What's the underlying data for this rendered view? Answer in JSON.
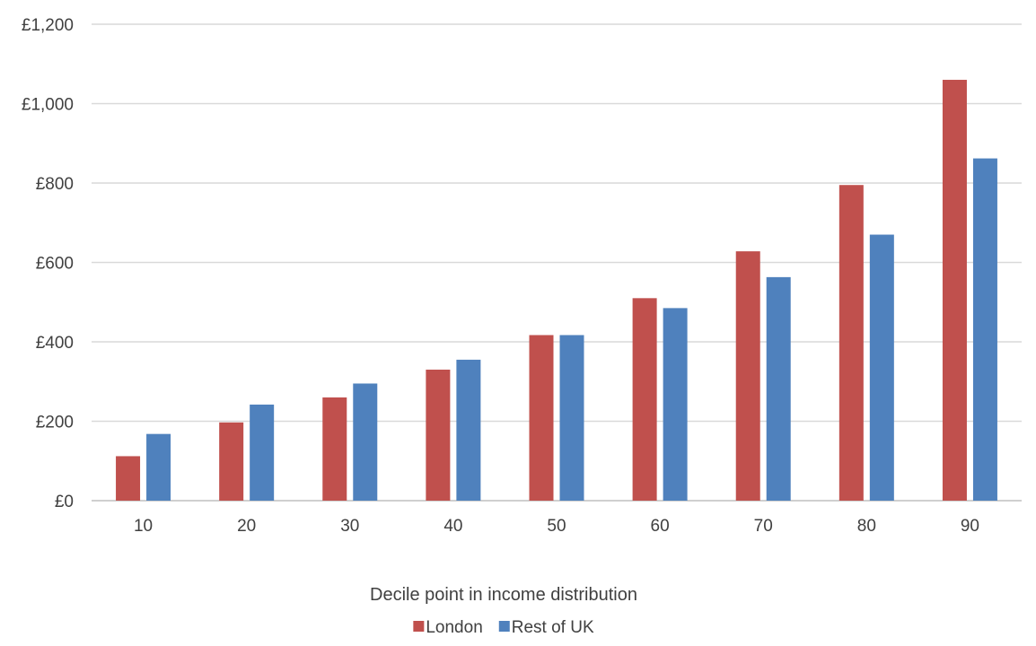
{
  "chart_data": {
    "type": "bar",
    "categories": [
      "10",
      "20",
      "30",
      "40",
      "50",
      "60",
      "70",
      "80",
      "90"
    ],
    "series": [
      {
        "name": "London",
        "color": "#c0504d",
        "values": [
          112,
          197,
          260,
          330,
          417,
          510,
          628,
          795,
          1060
        ]
      },
      {
        "name": "Rest of UK",
        "color": "#4f81bd",
        "values": [
          168,
          242,
          295,
          355,
          417,
          485,
          563,
          670,
          862
        ]
      }
    ],
    "xlabel": "Decile point in income distribution",
    "ylabel": "",
    "ylim": [
      0,
      1200
    ],
    "yticks": [
      0,
      200,
      400,
      600,
      800,
      1000,
      1200
    ],
    "ytick_labels": [
      "£0",
      "£200",
      "£400",
      "£600",
      "£800",
      "£1,000",
      "£1,200"
    ],
    "grid": true,
    "legend_position": "bottom"
  }
}
